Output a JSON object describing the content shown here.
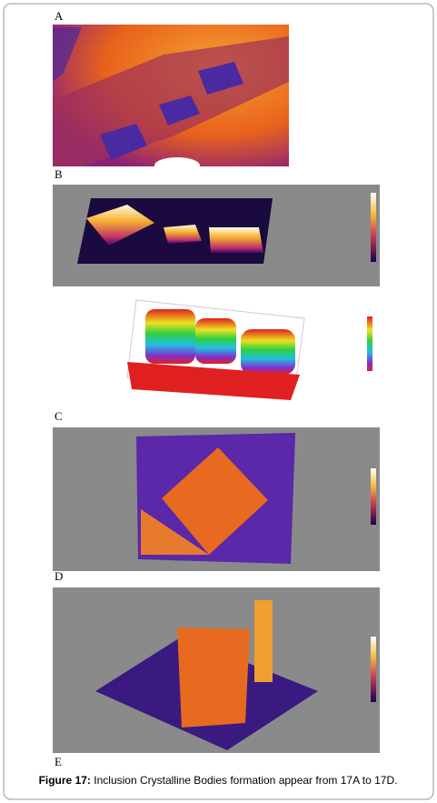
{
  "panels": [
    {
      "label": "A"
    },
    {
      "label": "B"
    },
    {
      "label": "C"
    },
    {
      "label": "D"
    },
    {
      "label": "E"
    }
  ],
  "caption": {
    "label": "Figure 17:",
    "text": "Inclusion Crystalline Bodies formation appear from 17A to 17D."
  }
}
